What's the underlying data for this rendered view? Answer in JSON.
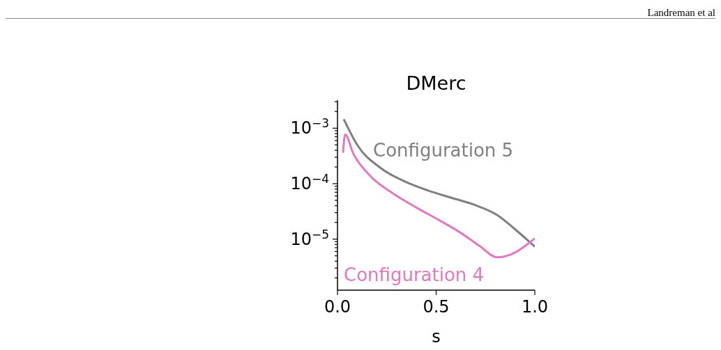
{
  "chart_data": {
    "type": "line",
    "title": "DMerc",
    "xlabel": "s",
    "annotations": [
      "Landreman et al"
    ],
    "xlim": [
      0,
      1
    ],
    "xticks": [
      {
        "value": 0,
        "label": "0.0"
      },
      {
        "value": 0.5,
        "label": "0.5"
      },
      {
        "value": 1,
        "label": "1.0"
      }
    ],
    "ylim": [
      1.2e-06,
      0.0032
    ],
    "log": true,
    "yticks": [
      {
        "value": 2e-06,
        "label": null
      },
      {
        "value": 3e-06,
        "label": null
      },
      {
        "value": 4e-06,
        "label": null
      },
      {
        "value": 5e-06,
        "label": null
      },
      {
        "value": 6e-06,
        "label": null
      },
      {
        "value": 7e-06,
        "label": null
      },
      {
        "value": 8e-06,
        "label": null
      },
      {
        "value": 9e-06,
        "label": null
      },
      {
        "value": 1e-05,
        "label": "10$^{−5}$"
      },
      {
        "value": 2e-05,
        "label": null
      },
      {
        "value": 3e-05,
        "label": null
      },
      {
        "value": 4e-05,
        "label": null
      },
      {
        "value": 5e-05,
        "label": null
      },
      {
        "value": 6e-05,
        "label": null
      },
      {
        "value": 7e-05,
        "label": null
      },
      {
        "value": 8e-05,
        "label": null
      },
      {
        "value": 9e-05,
        "label": null
      },
      {
        "value": 0.0001,
        "label": "10$^{−4}$"
      },
      {
        "value": 0.0002,
        "label": null
      },
      {
        "value": 0.0003,
        "label": null
      },
      {
        "value": 0.0004,
        "label": null
      },
      {
        "value": 0.0005,
        "label": null
      },
      {
        "value": 0.0006,
        "label": null
      },
      {
        "value": 0.0007,
        "label": null
      },
      {
        "value": 0.0008,
        "label": null
      },
      {
        "value": 0.0009,
        "label": null
      },
      {
        "value": 0.001,
        "label": "10$^{−3}$"
      },
      {
        "value": 0.002,
        "label": null
      },
      {
        "value": 0.003,
        "label": null
      }
    ],
    "marker": "none",
    "line_style": "solid",
    "series": [
      {
        "name": "Configuration 5",
        "color": "#7f7f7f",
        "x": [
          0.032,
          0.1,
          0.22,
          0.34,
          0.46,
          0.575,
          0.69,
          0.81,
          0.905,
          1.0
        ],
        "values": [
          0.00145,
          0.0005,
          0.00019,
          0.00011,
          7.5e-05,
          5.6e-05,
          4.2e-05,
          2.7e-05,
          1.45e-05,
          7.3e-06
        ]
      },
      {
        "name": "Configuration 4",
        "color": "#e377c2",
        "x": [
          0.028,
          0.039,
          0.08,
          0.16,
          0.28,
          0.4,
          0.515,
          0.63,
          0.72,
          0.81,
          0.88,
          1.0
        ],
        "values": [
          0.00036,
          0.00077,
          0.00035,
          0.000145,
          6.7e-05,
          3.7e-05,
          2.2e-05,
          1.26e-05,
          7.5e-06,
          4.7e-06,
          5.3e-06,
          1.03e-05
        ]
      }
    ]
  }
}
